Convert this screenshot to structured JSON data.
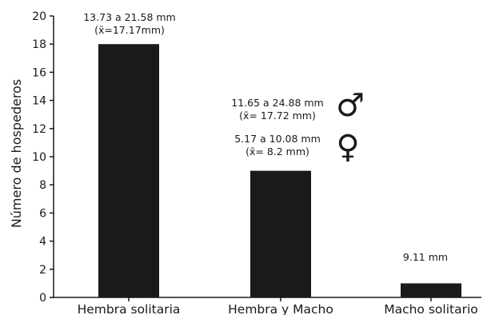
{
  "chart_data": {
    "type": "bar",
    "title": "",
    "xlabel": "",
    "ylabel": "Número de hospederos",
    "ylim": [
      0,
      20
    ],
    "yticks": [
      0,
      2,
      4,
      6,
      8,
      10,
      12,
      14,
      16,
      18,
      20
    ],
    "categories": [
      "Hembra solitaria",
      "Hembra y Macho",
      "Macho solitario"
    ],
    "values": [
      18,
      9,
      1
    ],
    "bar_color": "#1a1a1a",
    "annotations": [
      {
        "category": "Hembra solitaria",
        "lines": [
          "13.73 a 21.58 mm",
          "(x̄=17.17mm)"
        ]
      },
      {
        "category": "Hembra y Macho",
        "lines": [
          "11.65 a 24.88 mm",
          "(x̄= 17.72 mm)"
        ],
        "symbol": "♂"
      },
      {
        "category": "Hembra y Macho",
        "lines": [
          "5.17 a 10.08 mm",
          "(x̄= 8.2 mm)"
        ],
        "symbol": "♀"
      },
      {
        "category": "Macho solitario",
        "lines": [
          "9.11 mm"
        ]
      }
    ]
  }
}
